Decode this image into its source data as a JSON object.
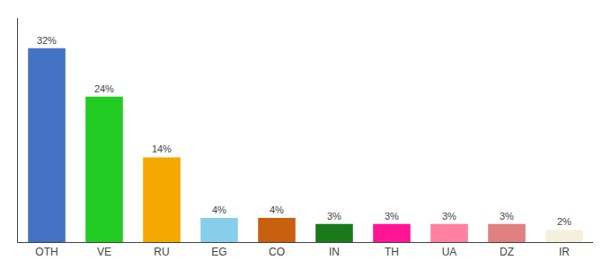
{
  "chart_data": {
    "type": "bar",
    "categories": [
      "OTH",
      "VE",
      "RU",
      "EG",
      "CO",
      "IN",
      "TH",
      "UA",
      "DZ",
      "IR"
    ],
    "values": [
      32,
      24,
      14,
      4,
      4,
      3,
      3,
      3,
      3,
      2
    ],
    "value_labels": [
      "32%",
      "24%",
      "14%",
      "4%",
      "4%",
      "3%",
      "3%",
      "3%",
      "3%",
      "2%"
    ],
    "colors": [
      "#4472c4",
      "#22cc22",
      "#f5a800",
      "#87ceeb",
      "#c86010",
      "#1a7a1a",
      "#ff1493",
      "#ff80a0",
      "#e08080",
      "#f5f0dc"
    ],
    "ylim": [
      0,
      37
    ],
    "yticks": [],
    "grid": false,
    "data_labels": true,
    "tick_labels": "x"
  }
}
